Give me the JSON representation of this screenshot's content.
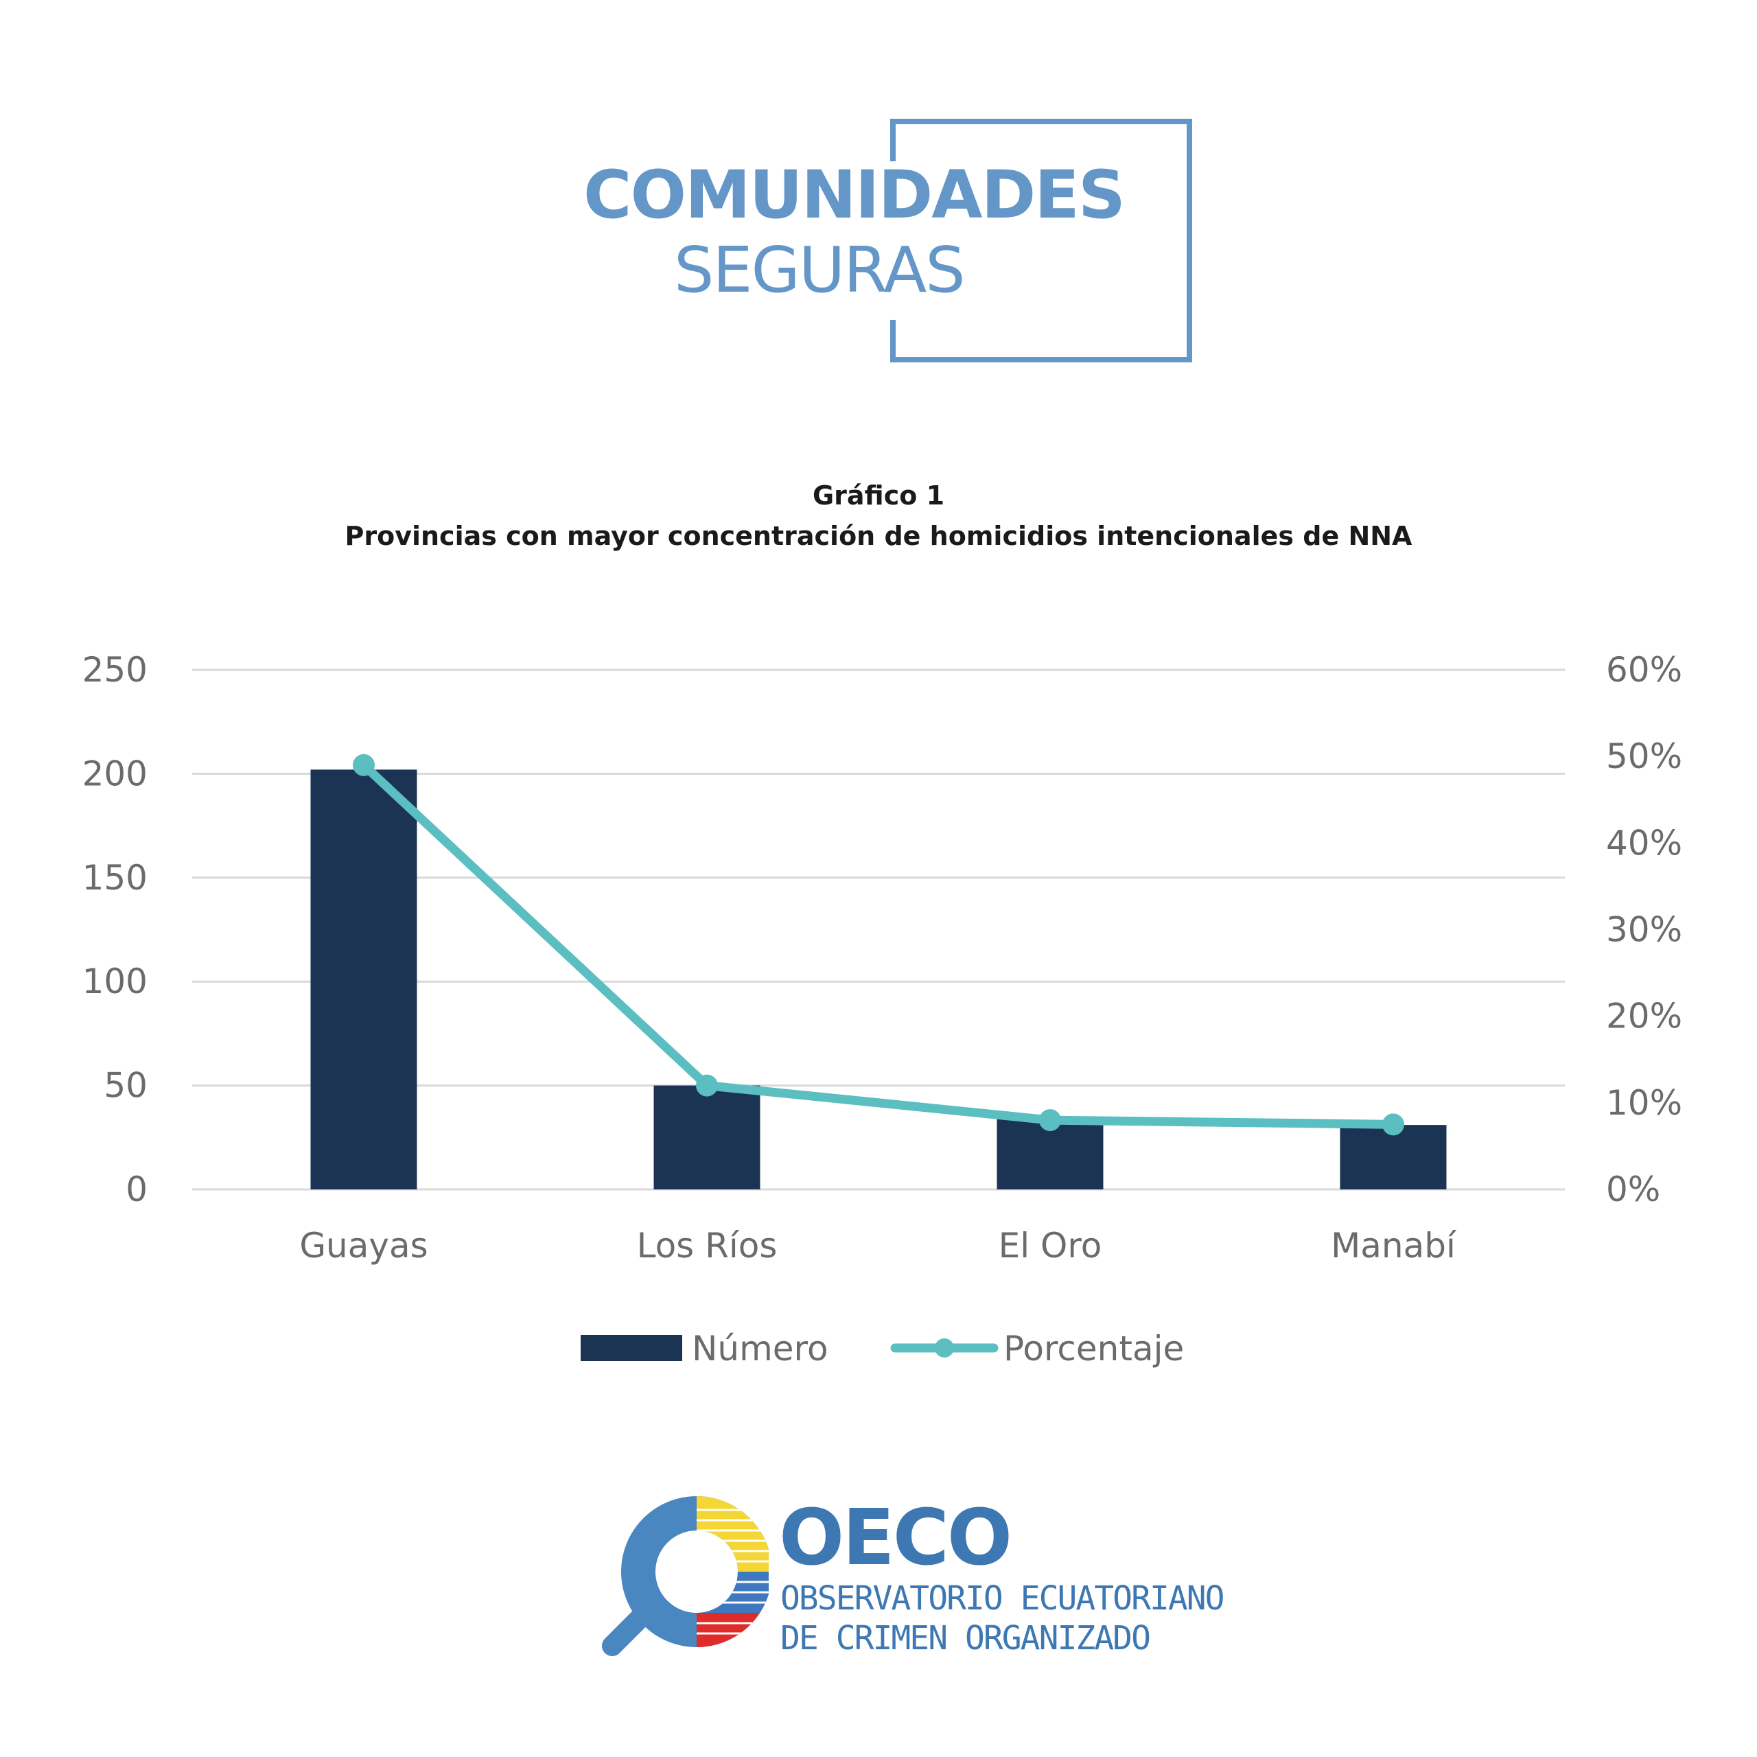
{
  "header_logo": {
    "line1": "COMUNIDADES",
    "line2": "SEGURAS",
    "color": "#6496c8"
  },
  "chart_data": {
    "type": "bar",
    "title": "Gráfico 1",
    "subtitle": "Provincias con mayor concentración de homicidios intencionales de NNA",
    "categories": [
      "Guayas",
      "Los Ríos",
      "El Oro",
      "Manabí"
    ],
    "series": [
      {
        "name": "Número",
        "type": "bar",
        "axis": "left",
        "color": "#1c3453",
        "values": [
          202,
          50,
          35,
          31
        ]
      },
      {
        "name": "Porcentaje",
        "type": "line",
        "axis": "right",
        "color": "#5bbec1",
        "values": [
          0.49,
          0.12,
          0.08,
          0.075
        ]
      }
    ],
    "y_left": {
      "ylim": [
        0,
        250
      ],
      "ticks": [
        0,
        50,
        100,
        150,
        200,
        250
      ],
      "tick_labels": [
        "0",
        "50",
        "100",
        "150",
        "200",
        "250"
      ]
    },
    "y_right": {
      "ylim": [
        0,
        0.6
      ],
      "ticks": [
        0,
        0.1,
        0.2,
        0.3,
        0.4,
        0.5,
        0.6
      ],
      "tick_labels": [
        "0%",
        "10%",
        "20%",
        "30%",
        "40%",
        "50%",
        "60%"
      ]
    },
    "grid": true,
    "legend_position": "bottom"
  },
  "footer_logo": {
    "name": "OECO",
    "line1": "OBSERVATORIO ECUATORIANO",
    "line2": "DE CRIMEN ORGANIZADO",
    "icon": "magnifier-flag-icon",
    "color": "#3e78b2"
  }
}
